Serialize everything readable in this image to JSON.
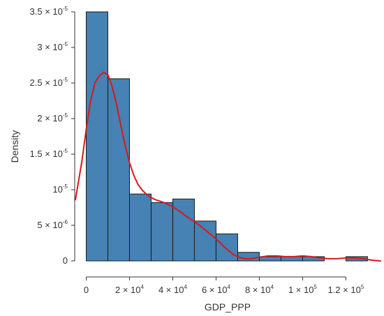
{
  "chart_data": {
    "type": "bar",
    "xlabel": "GDP_PPP",
    "ylabel": "Density",
    "xlim": [
      -5000,
      136000
    ],
    "ylim": [
      0,
      3.5e-05
    ],
    "bin_width": 10000,
    "bins": [
      {
        "start": 0,
        "end": 10000,
        "density": 3.5e-05
      },
      {
        "start": 10000,
        "end": 20000,
        "density": 2.56e-05
      },
      {
        "start": 20000,
        "end": 30000,
        "density": 9.4e-06
      },
      {
        "start": 30000,
        "end": 40000,
        "density": 8.2e-06
      },
      {
        "start": 40000,
        "end": 50000,
        "density": 8.7e-06
      },
      {
        "start": 50000,
        "end": 60000,
        "density": 5.6e-06
      },
      {
        "start": 60000,
        "end": 70000,
        "density": 3.8e-06
      },
      {
        "start": 70000,
        "end": 80000,
        "density": 1.2e-06
      },
      {
        "start": 80000,
        "end": 90000,
        "density": 6e-07
      },
      {
        "start": 90000,
        "end": 100000,
        "density": 6e-07
      },
      {
        "start": 100000,
        "end": 110000,
        "density": 6e-07
      },
      {
        "start": 110000,
        "end": 120000,
        "density": 0
      },
      {
        "start": 120000,
        "end": 130000,
        "density": 6e-07
      }
    ],
    "density_curve": {
      "color": "#d7191c",
      "x": [
        -5000,
        -2000,
        0,
        2000,
        4000,
        6000,
        8000,
        10000,
        12000,
        14000,
        16000,
        18000,
        20000,
        22000,
        24000,
        26000,
        28000,
        30000,
        32000,
        34000,
        36000,
        38000,
        40000,
        42000,
        44000,
        46000,
        48000,
        50000,
        52000,
        54000,
        56000,
        58000,
        60000,
        62000,
        64000,
        66000,
        68000,
        70000,
        72000,
        74000,
        76000,
        78000,
        80000,
        84000,
        88000,
        92000,
        96000,
        100000,
        104000,
        108000,
        112000,
        116000,
        120000,
        124000,
        128000,
        132000,
        136000
      ],
      "y": [
        8.6e-06,
        1.4e-05,
        1.85e-05,
        2.25e-05,
        2.5e-05,
        2.6e-05,
        2.65e-05,
        2.62e-05,
        2.45e-05,
        2.2e-05,
        1.9e-05,
        1.62e-05,
        1.38e-05,
        1.2e-05,
        1.07e-05,
        9.9e-06,
        9.3e-06,
        8.9e-06,
        8.6e-06,
        8.4e-06,
        8.2e-06,
        7.9e-06,
        7.6e-06,
        7.2e-06,
        6.8e-06,
        6.3e-06,
        5.9e-06,
        5.5e-06,
        5.1e-06,
        4.6e-06,
        4.1e-06,
        3.6e-06,
        3.1e-06,
        2.5e-06,
        1.9e-06,
        1.4e-06,
        9e-07,
        6e-07,
        4e-07,
        3e-07,
        3e-07,
        4e-07,
        5e-07,
        7e-07,
        7e-07,
        6e-07,
        6e-07,
        7e-07,
        6e-07,
        4e-07,
        3e-07,
        3e-07,
        4e-07,
        4e-07,
        3e-07,
        1e-07,
        0
      ]
    },
    "y_ticks": [
      {
        "value": 0,
        "mantissa": "0",
        "exponent": ""
      },
      {
        "value": 5e-06,
        "mantissa": "5 × 10",
        "exponent": "-6"
      },
      {
        "value": 1e-05,
        "mantissa": "10",
        "exponent": "-5"
      },
      {
        "value": 1.5e-05,
        "mantissa": "1.5 × 10",
        "exponent": "-5"
      },
      {
        "value": 2e-05,
        "mantissa": "2 × 10",
        "exponent": "-5"
      },
      {
        "value": 2.5e-05,
        "mantissa": "2.5 × 10",
        "exponent": "-5"
      },
      {
        "value": 3e-05,
        "mantissa": "3 × 10",
        "exponent": "-5"
      },
      {
        "value": 3.5e-05,
        "mantissa": "3.5 × 10",
        "exponent": "-5"
      }
    ],
    "x_ticks": [
      {
        "value": 0,
        "mantissa": "0",
        "exponent": ""
      },
      {
        "value": 20000,
        "mantissa": "2 × 10",
        "exponent": "4"
      },
      {
        "value": 40000,
        "mantissa": "4 × 10",
        "exponent": "4"
      },
      {
        "value": 60000,
        "mantissa": "6 × 10",
        "exponent": "4"
      },
      {
        "value": 80000,
        "mantissa": "8 × 10",
        "exponent": "4"
      },
      {
        "value": 100000,
        "mantissa": "1 × 10",
        "exponent": "5"
      },
      {
        "value": 120000,
        "mantissa": "1.2 × 10",
        "exponent": "5"
      }
    ],
    "colors": {
      "bar_fill": "#4682b4",
      "bar_stroke": "#1a1a1a",
      "axis": "#333333"
    }
  }
}
